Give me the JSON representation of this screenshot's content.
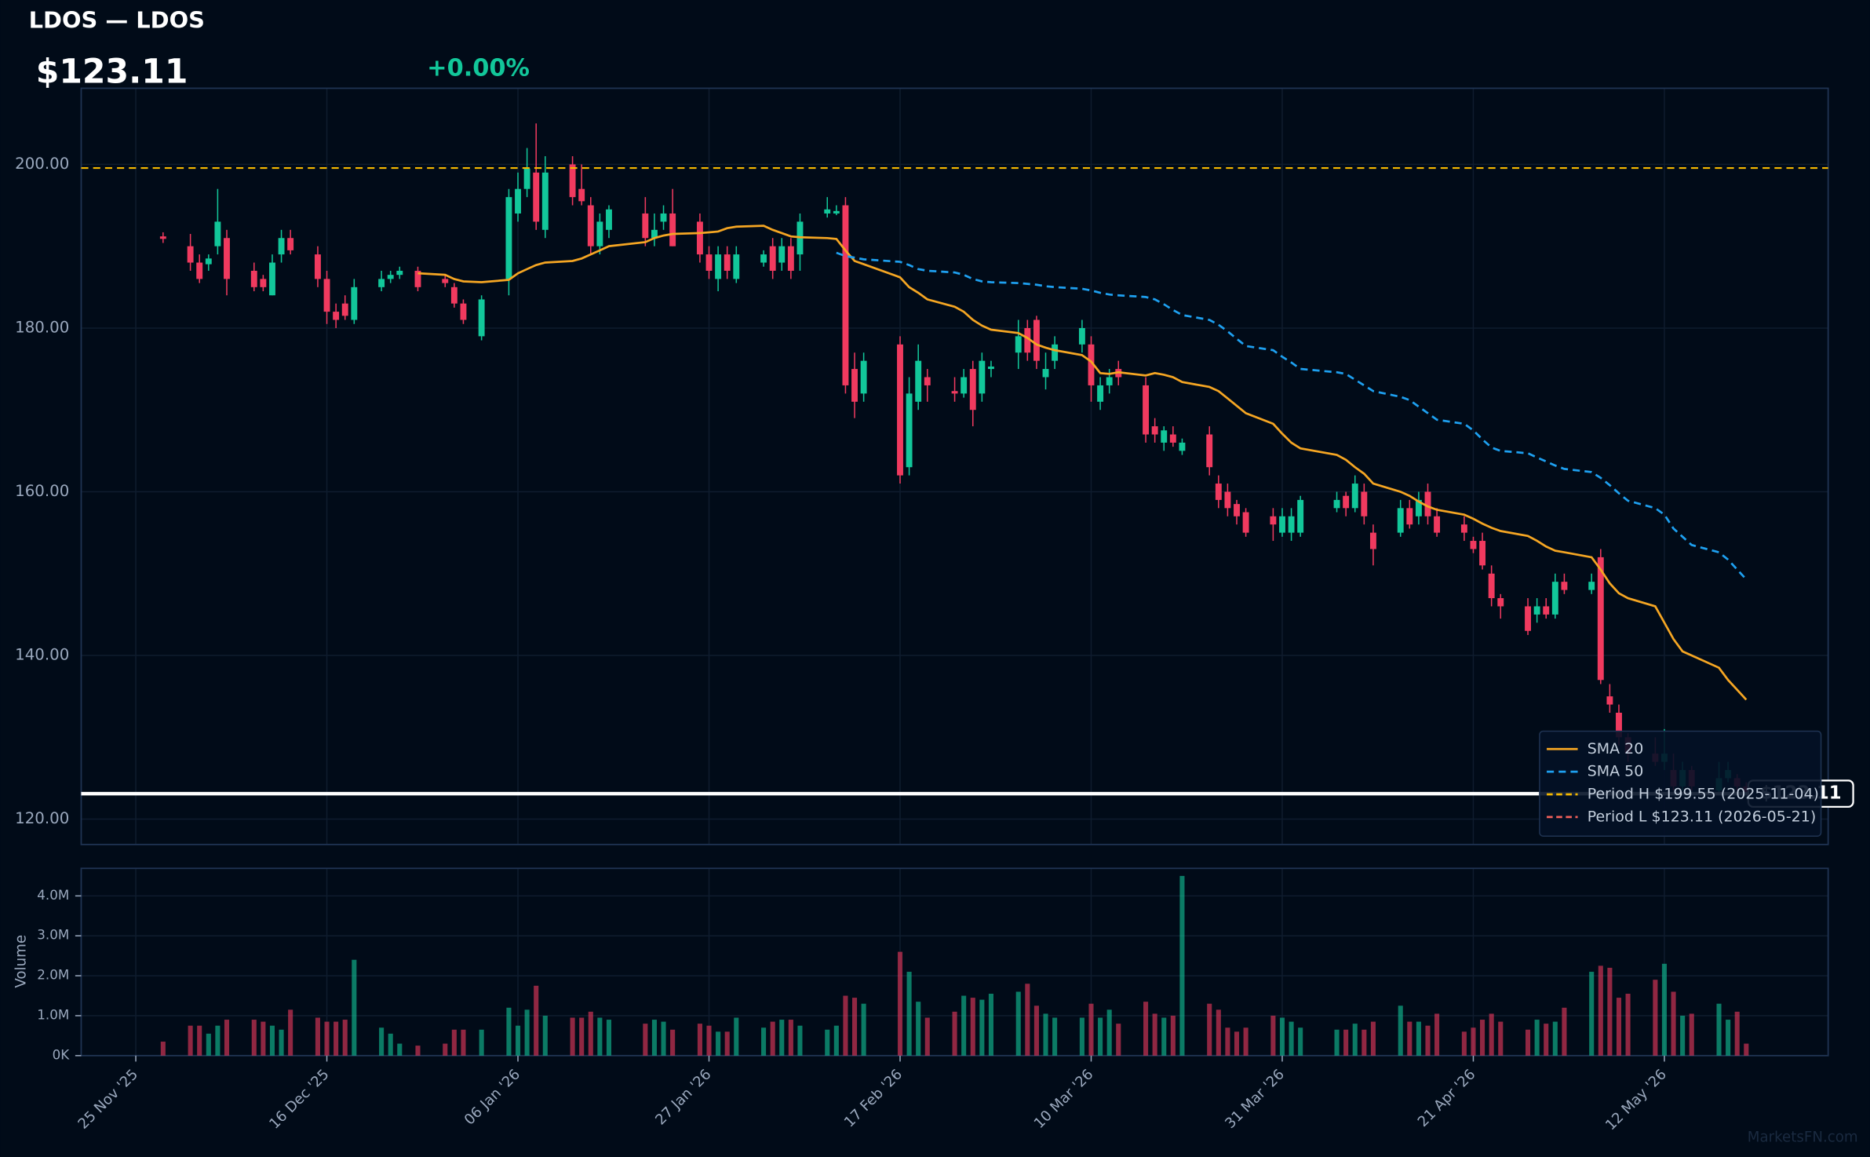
{
  "chart_data": {
    "type": "candlestick",
    "title": "LDOS — LDOS",
    "price": "$123.11",
    "change": "+0.00%",
    "watermark": "MarketsFN.com",
    "up_color": "#12c79a",
    "down_color": "#f03a5f",
    "grid": true,
    "legend": "lower right",
    "xlim": [
      "2025-11-19",
      "2026-05-30"
    ],
    "xticks": [
      {
        "value": "2025-11-25",
        "label": "25 Nov '25"
      },
      {
        "value": "2025-12-16",
        "label": "16 Dec '25"
      },
      {
        "value": "2026-01-06",
        "label": "06 Jan '26"
      },
      {
        "value": "2026-01-27",
        "label": "27 Jan '26"
      },
      {
        "value": "2026-02-17",
        "label": "17 Feb '26"
      },
      {
        "value": "2026-03-10",
        "label": "10 Mar '26"
      },
      {
        "value": "2026-03-31",
        "label": "31 Mar '26"
      },
      {
        "value": "2026-04-21",
        "label": "21 Apr '26"
      },
      {
        "value": "2026-05-12",
        "label": "12 May '26"
      }
    ],
    "ylim": [
      116.9,
      209.3
    ],
    "yticks": [
      {
        "value": 120,
        "label": "120.00"
      },
      {
        "value": 140,
        "label": "140.00"
      },
      {
        "value": 160,
        "label": "160.00"
      },
      {
        "value": 180,
        "label": "180.00"
      },
      {
        "value": 200,
        "label": "200.00"
      }
    ],
    "vlabel": "Volume",
    "vlim": [
      0,
      4690000
    ],
    "vticks": [
      {
        "value": 0,
        "label": "0K"
      },
      {
        "value": 1000000,
        "label": "1.0M"
      },
      {
        "value": 2000000,
        "label": "2.0M"
      },
      {
        "value": 3000000,
        "label": "3.0M"
      },
      {
        "value": 4000000,
        "label": "4.0M"
      }
    ],
    "x": [
      "2025-11-28",
      "2025-12-01",
      "2025-12-02",
      "2025-12-03",
      "2025-12-04",
      "2025-12-05",
      "2025-12-08",
      "2025-12-09",
      "2025-12-10",
      "2025-12-11",
      "2025-12-12",
      "2025-12-15",
      "2025-12-16",
      "2025-12-17",
      "2025-12-18",
      "2025-12-19",
      "2025-12-22",
      "2025-12-23",
      "2025-12-24",
      "2025-12-26",
      "2025-12-29",
      "2025-12-30",
      "2025-12-31",
      "2026-01-02",
      "2026-01-05",
      "2026-01-06",
      "2026-01-07",
      "2026-01-08",
      "2026-01-09",
      "2026-01-12",
      "2026-01-13",
      "2026-01-14",
      "2026-01-15",
      "2026-01-16",
      "2026-01-20",
      "2026-01-21",
      "2026-01-22",
      "2026-01-23",
      "2026-01-26",
      "2026-01-27",
      "2026-01-28",
      "2026-01-29",
      "2026-01-30",
      "2026-02-02",
      "2026-02-03",
      "2026-02-04",
      "2026-02-05",
      "2026-02-06",
      "2026-02-09",
      "2026-02-10",
      "2026-02-11",
      "2026-02-12",
      "2026-02-13",
      "2026-02-17",
      "2026-02-18",
      "2026-02-19",
      "2026-02-20",
      "2026-02-23",
      "2026-02-24",
      "2026-02-25",
      "2026-02-26",
      "2026-02-27",
      "2026-03-02",
      "2026-03-03",
      "2026-03-04",
      "2026-03-05",
      "2026-03-06",
      "2026-03-09",
      "2026-03-10",
      "2026-03-11",
      "2026-03-12",
      "2026-03-13",
      "2026-03-16",
      "2026-03-17",
      "2026-03-18",
      "2026-03-19",
      "2026-03-20",
      "2026-03-23",
      "2026-03-24",
      "2026-03-25",
      "2026-03-26",
      "2026-03-27",
      "2026-03-30",
      "2026-03-31",
      "2026-04-01",
      "2026-04-02",
      "2026-04-06",
      "2026-04-07",
      "2026-04-08",
      "2026-04-09",
      "2026-04-10",
      "2026-04-13",
      "2026-04-14",
      "2026-04-15",
      "2026-04-16",
      "2026-04-17",
      "2026-04-20",
      "2026-04-21",
      "2026-04-22",
      "2026-04-23",
      "2026-04-24",
      "2026-04-27",
      "2026-04-28",
      "2026-04-29",
      "2026-04-30",
      "2026-05-01",
      "2026-05-04",
      "2026-05-05",
      "2026-05-06",
      "2026-05-07",
      "2026-05-08",
      "2026-05-11",
      "2026-05-12",
      "2026-05-13",
      "2026-05-14",
      "2026-05-15",
      "2026-05-18",
      "2026-05-19",
      "2026-05-20",
      "2026-05-21"
    ],
    "open": [
      191.2,
      190,
      188,
      187.8,
      190,
      191,
      187,
      186,
      184,
      189,
      191,
      189,
      186,
      182,
      183,
      181,
      185,
      186,
      186.5,
      187,
      186,
      185,
      183,
      179,
      186,
      194,
      197,
      199,
      192,
      200,
      197,
      195,
      190,
      192,
      194,
      191,
      193,
      194,
      193,
      189,
      186,
      189,
      186,
      188,
      190,
      188,
      190,
      189,
      194,
      194,
      195,
      175,
      172,
      178,
      163,
      171,
      174,
      172.3,
      172,
      175,
      172,
      175,
      177,
      180,
      181,
      174,
      176,
      178,
      178,
      171,
      173,
      175,
      173,
      168,
      166,
      167,
      165,
      167,
      161,
      160,
      158.5,
      157.5,
      157,
      155,
      155,
      155,
      158,
      159.5,
      158,
      160,
      155,
      155,
      158,
      157,
      160,
      157,
      156,
      154,
      154,
      150,
      147,
      146,
      145,
      146,
      145,
      149,
      148,
      152,
      135,
      133,
      130,
      128,
      127,
      126,
      124,
      126,
      123.5,
      125,
      125,
      124
    ],
    "high": [
      191.7,
      191.5,
      189,
      189,
      197,
      192,
      188,
      186.5,
      189,
      192,
      192,
      190,
      187,
      183,
      184,
      186,
      187,
      187,
      187.5,
      187.5,
      186.5,
      185.5,
      183.5,
      184,
      197,
      199,
      202,
      205,
      201,
      201,
      200,
      196,
      194,
      195,
      196,
      194,
      195,
      197,
      194,
      190,
      190,
      190,
      190,
      189.5,
      191,
      191,
      191,
      194,
      196,
      195,
      196,
      177,
      177,
      179,
      174,
      178,
      175,
      174,
      175,
      176,
      177,
      176,
      181,
      181,
      181.5,
      177,
      179,
      181,
      179,
      174,
      175,
      176,
      174,
      169,
      168,
      168,
      166.5,
      168,
      162,
      161,
      159,
      158,
      158,
      158,
      158,
      159.5,
      160,
      160,
      162,
      161,
      156,
      159,
      159,
      160,
      161,
      158,
      157,
      154.5,
      155,
      151,
      147.5,
      147,
      147,
      147,
      150,
      150,
      150,
      153,
      136.5,
      134,
      130.5,
      130,
      131,
      128,
      127,
      126.5,
      127,
      127,
      125.5,
      124.5
    ],
    "low": [
      190.4,
      187,
      185.5,
      187,
      189,
      184,
      184.5,
      184.5,
      184,
      188,
      189,
      185,
      180.5,
      180,
      181,
      180.5,
      184.5,
      185.5,
      186,
      184.5,
      185,
      182.5,
      180.5,
      178.5,
      184,
      193,
      196,
      192,
      191,
      195,
      195,
      189,
      189,
      191,
      190,
      190,
      192,
      190,
      188,
      186,
      184.5,
      186,
      185.5,
      187.5,
      186,
      187,
      186,
      187,
      193.5,
      193.8,
      172,
      169,
      171,
      161,
      162,
      170,
      171,
      171,
      171.5,
      168,
      171,
      174,
      175,
      176,
      175,
      172.5,
      175,
      177,
      171,
      170,
      172,
      173,
      166,
      166,
      165,
      165.5,
      164.5,
      162,
      158,
      157,
      156,
      154.5,
      154,
      154.5,
      154,
      154.5,
      157.5,
      157,
      157.5,
      156,
      151,
      154.5,
      155.5,
      156,
      156,
      154.5,
      154,
      152.5,
      150.5,
      146,
      144.5,
      142.5,
      144,
      144.5,
      144.5,
      147.5,
      147.5,
      136.5,
      133,
      129,
      127,
      126.5,
      126,
      123.5,
      123.5,
      123.5,
      123.2,
      124.5,
      123.5,
      123.11
    ],
    "close": [
      190.9,
      188,
      186,
      188.5,
      193,
      186,
      185,
      185,
      188,
      191,
      189.5,
      186,
      182,
      181,
      181.5,
      185,
      186,
      186.5,
      187,
      185,
      185.5,
      183,
      181,
      183.5,
      196,
      197,
      199.5,
      193,
      199,
      196,
      195.5,
      190,
      193,
      194.5,
      191,
      192,
      194,
      190,
      189,
      187,
      189,
      187,
      189,
      189,
      187,
      190,
      187,
      193,
      194.5,
      194.3,
      173,
      171,
      176,
      162,
      172,
      176,
      173,
      172,
      174,
      170,
      176,
      175.3,
      179,
      177,
      176,
      175,
      178,
      180,
      173,
      173,
      174,
      174,
      167,
      167,
      167.5,
      166,
      166,
      163,
      159,
      158,
      157,
      155,
      156,
      157,
      157,
      159,
      159,
      158,
      161,
      157,
      153,
      158,
      156,
      159,
      157,
      155,
      155,
      153,
      151,
      147,
      146,
      143,
      146,
      145,
      149,
      148,
      149,
      137,
      134,
      130,
      128,
      127,
      128,
      124,
      126,
      124,
      125,
      126,
      124,
      123.11
    ],
    "volume": [
      350000,
      750000,
      750000,
      550000,
      750000,
      900000,
      900000,
      850000,
      750000,
      650000,
      1150000,
      950000,
      850000,
      850000,
      900000,
      2400000,
      700000,
      550000,
      300000,
      250000,
      300000,
      650000,
      650000,
      650000,
      1200000,
      750000,
      1150000,
      1750000,
      1000000,
      950000,
      950000,
      1100000,
      950000,
      900000,
      800000,
      900000,
      850000,
      650000,
      800000,
      750000,
      600000,
      600000,
      950000,
      700000,
      850000,
      900000,
      900000,
      750000,
      650000,
      750000,
      1500000,
      1450000,
      1300000,
      2600000,
      2100000,
      1350000,
      950000,
      1100000,
      1500000,
      1450000,
      1400000,
      1550000,
      1600000,
      1800000,
      1250000,
      1050000,
      950000,
      950000,
      1300000,
      950000,
      1150000,
      800000,
      1350000,
      1050000,
      950000,
      1000000,
      4500000,
      1300000,
      1150000,
      700000,
      600000,
      700000,
      1000000,
      950000,
      850000,
      700000,
      650000,
      650000,
      800000,
      650000,
      850000,
      1250000,
      850000,
      850000,
      750000,
      1050000,
      600000,
      700000,
      900000,
      1050000,
      850000,
      650000,
      900000,
      800000,
      850000,
      1200000,
      2100000,
      2250000,
      2200000,
      1450000,
      1550000,
      1900000,
      2300000,
      1600000,
      1000000,
      1050000,
      1300000,
      900000,
      1100000,
      300000
    ],
    "series": [
      {
        "name": "SMA 20",
        "color": "#f5a623",
        "dashed": false,
        "values": [
          null,
          null,
          null,
          null,
          null,
          null,
          null,
          null,
          null,
          null,
          null,
          null,
          null,
          null,
          null,
          null,
          null,
          null,
          null,
          186.7,
          186.5,
          186,
          185.7,
          185.6,
          185.9,
          186.7,
          187.2,
          187.7,
          188,
          188.2,
          188.5,
          189,
          189.5,
          190,
          190.5,
          191,
          191.3,
          191.5,
          191.6,
          191.7,
          191.8,
          192.2,
          192.4,
          192.5,
          192,
          191.6,
          191.2,
          191.1,
          191,
          190.9,
          189.5,
          188.2,
          187.8,
          186.2,
          185,
          184.3,
          183.5,
          182.6,
          182,
          181,
          180.3,
          179.8,
          179.4,
          178.8,
          178,
          177.6,
          177.3,
          176.7,
          175.9,
          174.5,
          174.4,
          174.6,
          174.2,
          174.5,
          174.3,
          174,
          173.4,
          172.8,
          172.3,
          171.4,
          170.5,
          169.6,
          168.3,
          167.1,
          166,
          165.3,
          164.5,
          163.9,
          163,
          162.2,
          161,
          160,
          159.5,
          158.8,
          158.2,
          157.8,
          157.2,
          156.7,
          156.1,
          155.6,
          155.2,
          154.6,
          154,
          153.3,
          152.8,
          152.6,
          152,
          150.5,
          148.8,
          147.6,
          147,
          146,
          144,
          142,
          140.5,
          140,
          138.5,
          137,
          135.8,
          134.6
        ]
      },
      {
        "name": "SMA 50",
        "color": "#1ea0f0",
        "dashed": true,
        "values": [
          null,
          null,
          null,
          null,
          null,
          null,
          null,
          null,
          null,
          null,
          null,
          null,
          null,
          null,
          null,
          null,
          null,
          null,
          null,
          null,
          null,
          null,
          null,
          null,
          null,
          null,
          null,
          null,
          null,
          null,
          null,
          null,
          null,
          null,
          null,
          null,
          null,
          null,
          null,
          null,
          null,
          null,
          null,
          null,
          null,
          null,
          null,
          null,
          null,
          189.2,
          188.8,
          188.6,
          188.4,
          188.1,
          187.7,
          187.2,
          187,
          186.8,
          186.5,
          186,
          185.7,
          185.6,
          185.5,
          185.4,
          185.3,
          185.1,
          185,
          184.8,
          184.6,
          184.3,
          184.1,
          184,
          183.8,
          183.5,
          182.9,
          182.2,
          181.6,
          181,
          180.4,
          179.6,
          178.7,
          177.8,
          177.3,
          176.5,
          175.8,
          175,
          174.6,
          174.4,
          173.7,
          173,
          172.3,
          171.6,
          171.2,
          170.4,
          169.6,
          168.8,
          168.3,
          167.5,
          166.4,
          165.4,
          165,
          164.7,
          164.2,
          163.7,
          163.2,
          162.8,
          162.4,
          161.7,
          160.8,
          159.8,
          158.9,
          158,
          157.2,
          155.5,
          154.5,
          153.5,
          152.6,
          151.7,
          150.5,
          149.3
        ]
      }
    ],
    "hlines": [
      {
        "name": "Period H $199.55 (2025-11-04)",
        "value": 199.55,
        "color": "#f5b800"
      },
      {
        "name": "Period L $123.11 (2026-05-21)",
        "value": 123.11,
        "color": "#f0605a"
      }
    ],
    "last_color": "#ffffff"
  }
}
